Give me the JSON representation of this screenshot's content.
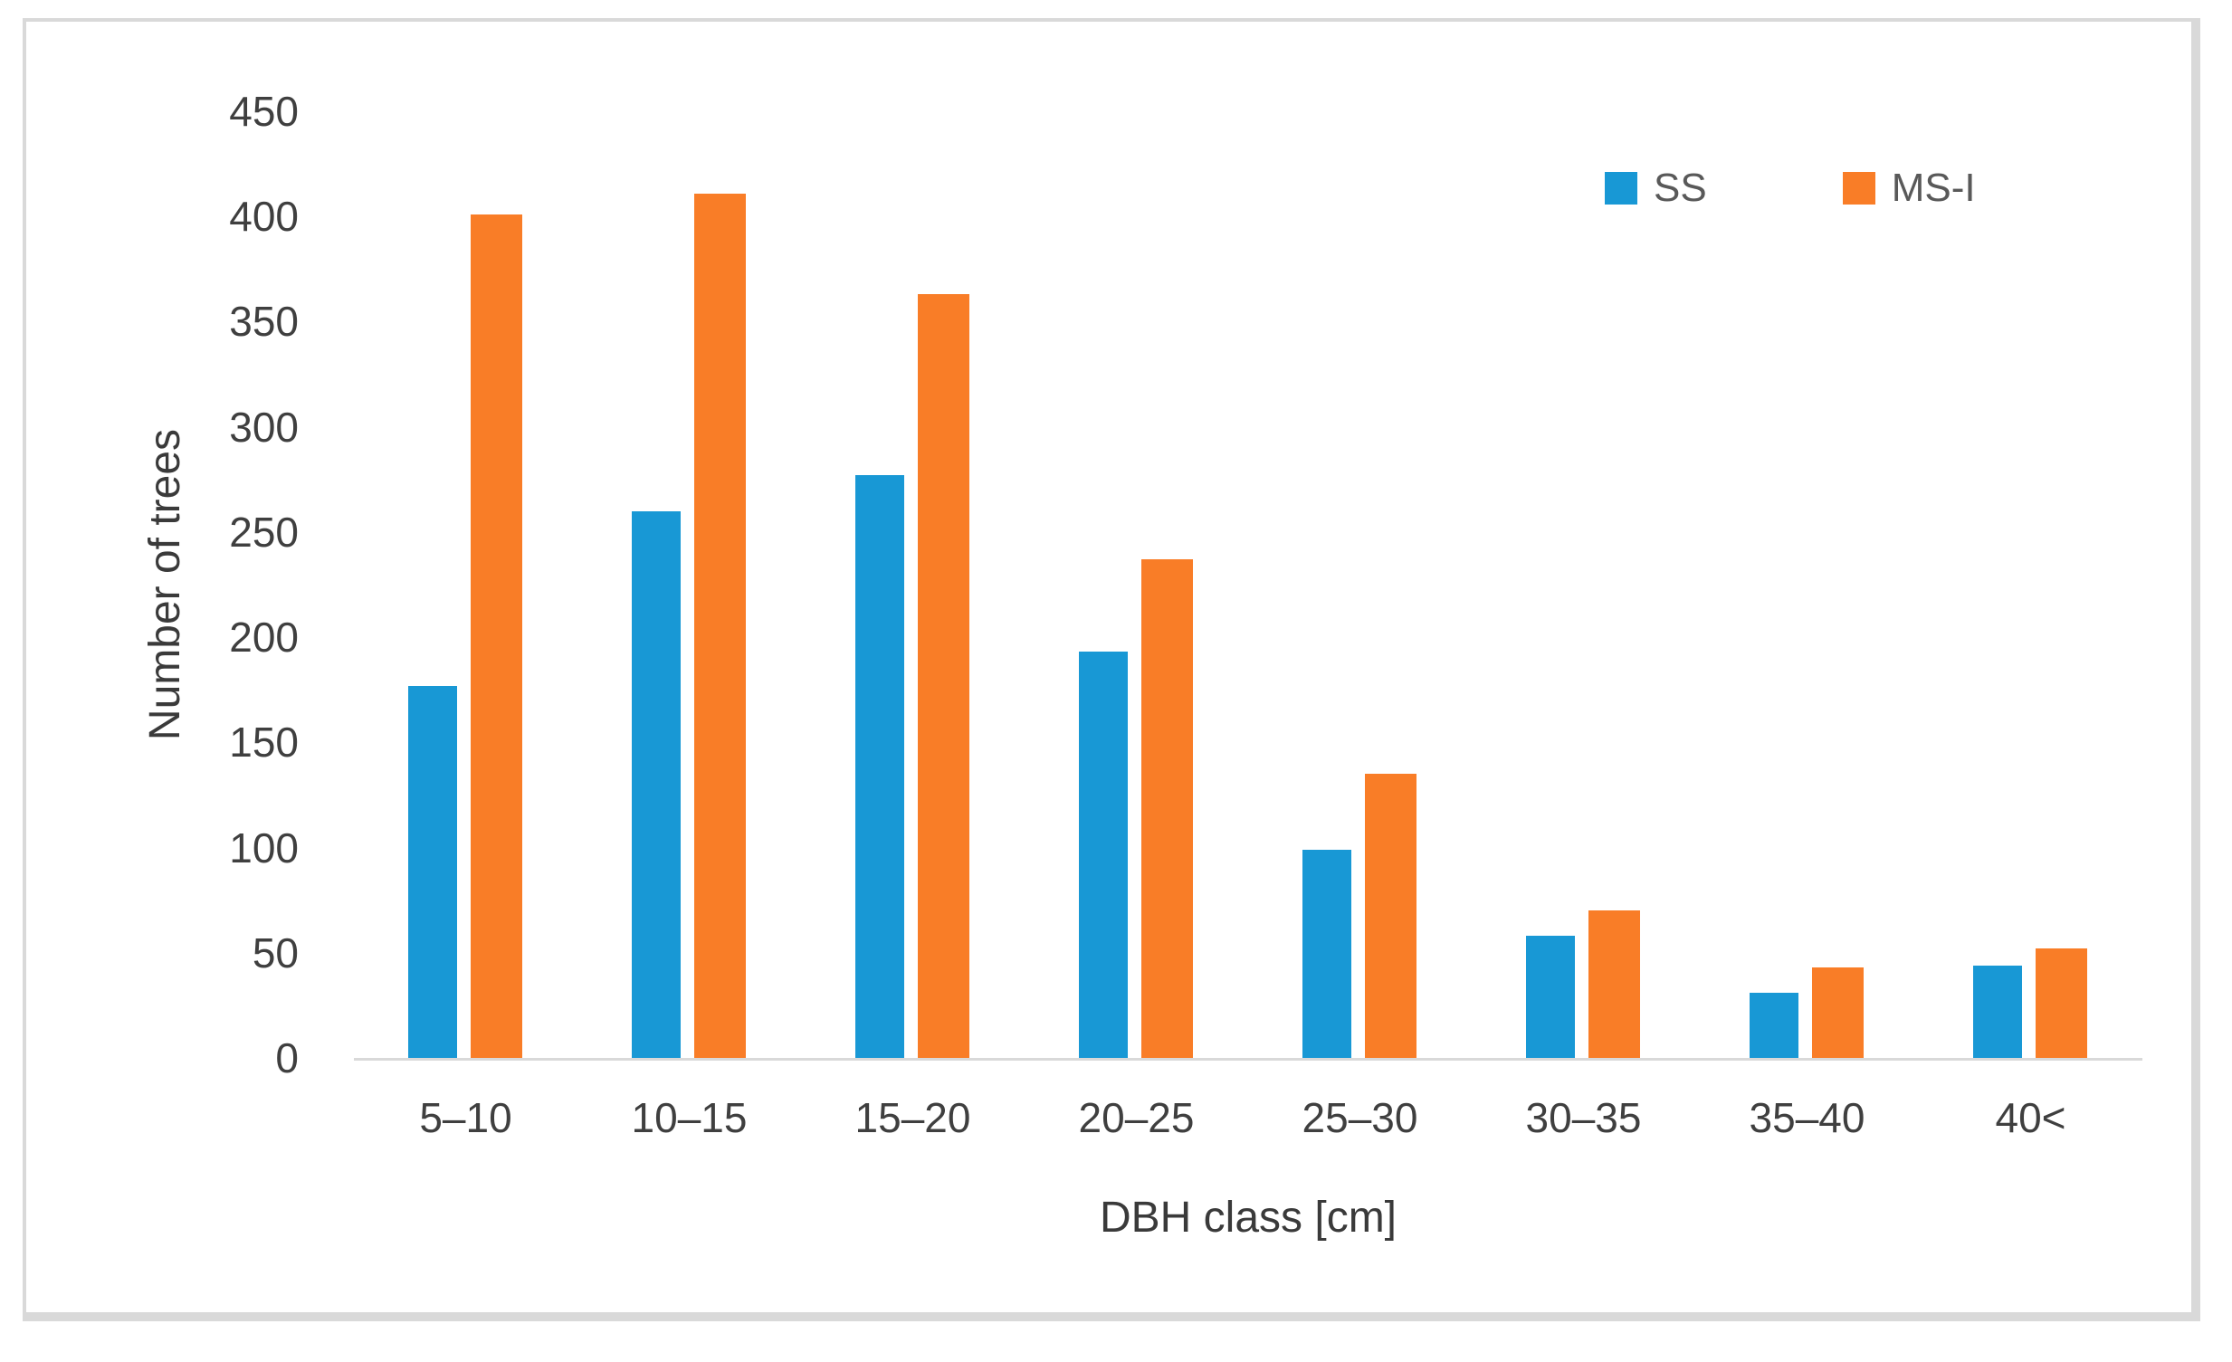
{
  "figure": {
    "background": "#ffffff",
    "frame_border_color": "#d9d9d9",
    "axis_line_color": "#d9d9d9",
    "tick_label_color": "#3f3f3f",
    "legend_text_color": "#595959"
  },
  "chart_data": {
    "type": "bar",
    "title": "",
    "xlabel": "DBH class [cm]",
    "ylabel": "Number of trees",
    "categories": [
      "5–10",
      "10–15",
      "15–20",
      "20–25",
      "25–30",
      "30–35",
      "35–40",
      "40<"
    ],
    "series": [
      {
        "name": "SS",
        "color": "#1898d5",
        "values": [
          177,
          260,
          277,
          193,
          99,
          58,
          31,
          44
        ]
      },
      {
        "name": "MS-I",
        "color": "#f97d27",
        "values": [
          401,
          411,
          363,
          237,
          135,
          70,
          43,
          52
        ]
      }
    ],
    "ylim": [
      0,
      450
    ],
    "ytick_step": 50,
    "grid": false,
    "legend_position": "top-right"
  }
}
